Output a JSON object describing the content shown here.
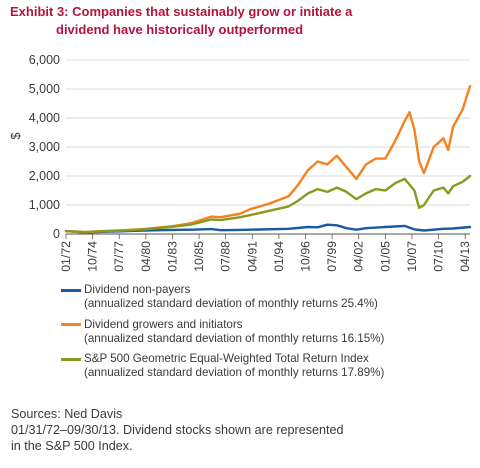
{
  "title_line1": "Exhibit 3: Companies that sustainably grow or initiate a",
  "title_line2": "dividend have historically outperformed",
  "sources": {
    "line1": "Sources: Ned Davis",
    "line2": "01/31/72–09/30/13. Dividend stocks shown are represented",
    "line3": "in the S&P 500 Index."
  },
  "chart_data": {
    "type": "line",
    "ylabel": "$",
    "ylim": [
      0,
      6000
    ],
    "yticks": [
      "0",
      "1,000",
      "2,000",
      "3,000",
      "4,000",
      "5,000",
      "6,000"
    ],
    "ytick_values": [
      0,
      1000,
      2000,
      3000,
      4000,
      5000,
      6000
    ],
    "xlim": [
      1972.0,
      2013.75
    ],
    "xticks": [
      "01/72",
      "10/74",
      "07/77",
      "04/80",
      "01/83",
      "10/85",
      "07/88",
      "04/91",
      "01/94",
      "10/96",
      "07/99",
      "04/02",
      "01/05",
      "10/07",
      "07/10",
      "04/13"
    ],
    "xtick_values": [
      1972.0,
      1974.75,
      1977.5,
      1980.25,
      1983.0,
      1985.75,
      1988.5,
      1991.25,
      1994.0,
      1996.75,
      1999.5,
      2002.25,
      2005.0,
      2007.75,
      2010.5,
      2013.25
    ],
    "grid": "horizontal",
    "legend_placement": "bottom",
    "series": [
      {
        "name": "Dividend non-payers",
        "note": "(annualized standard deviation of monthly returns 25.4%)",
        "color": "#1a5aa0",
        "x": [
          1972,
          1974,
          1975,
          1978,
          1980,
          1983,
          1985,
          1987,
          1988,
          1990,
          1992,
          1995,
          1997,
          1998,
          1999,
          2000,
          2001,
          2002,
          2003,
          2005,
          2007,
          2008,
          2009,
          2011,
          2012,
          2013.75
        ],
        "y": [
          100,
          55,
          70,
          95,
          120,
          140,
          150,
          170,
          130,
          140,
          155,
          180,
          240,
          230,
          320,
          300,
          200,
          150,
          200,
          240,
          280,
          160,
          120,
          180,
          190,
          240
        ]
      },
      {
        "name": "Dividend growers and initiators",
        "note": "(annualized standard deviation of monthly returns 16.15%)",
        "color": "#f58220",
        "x": [
          1972,
          1974,
          1975,
          1978,
          1980,
          1983,
          1985,
          1987,
          1988,
          1990,
          1991,
          1993,
          1995,
          1996,
          1997,
          1998,
          1999,
          2000,
          2001,
          2002,
          2003,
          2004,
          2005,
          2006,
          2007,
          2007.5,
          2008,
          2008.5,
          2009,
          2010,
          2011,
          2011.5,
          2012,
          2013,
          2013.75
        ],
        "y": [
          100,
          70,
          90,
          130,
          170,
          270,
          380,
          600,
          580,
          700,
          850,
          1050,
          1300,
          1700,
          2200,
          2500,
          2400,
          2700,
          2300,
          1900,
          2400,
          2600,
          2600,
          3200,
          3900,
          4200,
          3600,
          2500,
          2100,
          3000,
          3300,
          2900,
          3700,
          4300,
          5100
        ]
      },
      {
        "name": "S&P 500 Geometric Equal-Weighted Total Return Index",
        "note": "(annualized standard deviation of monthly returns 17.89%)",
        "color": "#8a9a1e",
        "x": [
          1972,
          1974,
          1975,
          1978,
          1980,
          1983,
          1985,
          1987,
          1988,
          1990,
          1991,
          1993,
          1995,
          1996,
          1997,
          1998,
          1999,
          2000,
          2001,
          2002,
          2003,
          2004,
          2005,
          2006,
          2007,
          2008,
          2008.5,
          2009,
          2010,
          2011,
          2011.5,
          2012,
          2013,
          2013.75
        ],
        "y": [
          100,
          60,
          80,
          120,
          160,
          250,
          330,
          500,
          480,
          580,
          650,
          800,
          950,
          1150,
          1400,
          1550,
          1450,
          1600,
          1450,
          1200,
          1400,
          1550,
          1500,
          1750,
          1900,
          1500,
          900,
          1000,
          1500,
          1600,
          1400,
          1650,
          1800,
          2000
        ]
      }
    ]
  }
}
